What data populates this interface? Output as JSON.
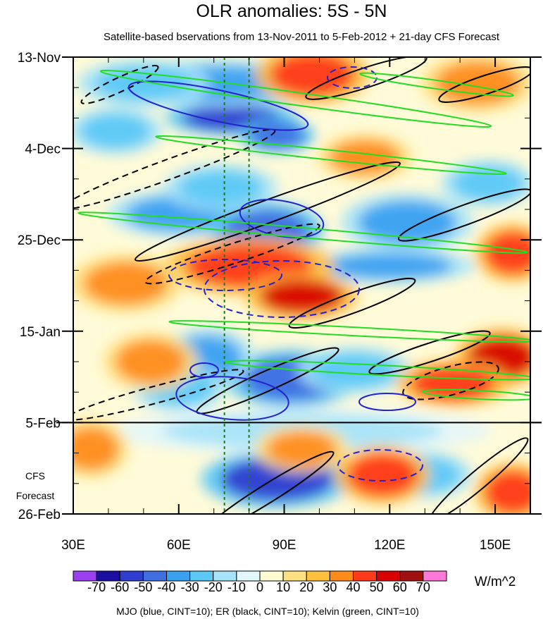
{
  "chart_data": {
    "type": "heatmap",
    "title": "OLR anomalies: 5S - 5N",
    "subtitle": "Satellite-based bservations from 13-Nov-2011 to 5-Feb-2012 + 21-day CFS Forecast",
    "x_ticks": [
      {
        "value": 30,
        "label": "30E"
      },
      {
        "value": 60,
        "label": "60E"
      },
      {
        "value": 90,
        "label": "90E"
      },
      {
        "value": 120,
        "label": "120E"
      },
      {
        "value": 150,
        "label": "150E"
      }
    ],
    "x_range": [
      30,
      160
    ],
    "y_range_days": [
      0,
      105
    ],
    "y_ticks": [
      {
        "day": 0,
        "label": "13-Nov"
      },
      {
        "day": 21,
        "label": "4-Dec"
      },
      {
        "day": 42,
        "label": "25-Dec"
      },
      {
        "day": 63,
        "label": "15-Jan"
      },
      {
        "day": 84,
        "label": "5-Feb"
      },
      {
        "day": 105,
        "label": "26-Feb"
      }
    ],
    "forecast_start_day": 84,
    "forecast_label_line1": "CFS",
    "forecast_label_line2": "Forecast",
    "reference_longitudes": [
      73,
      80
    ],
    "colorbar": {
      "labels": [
        "-70",
        "-60",
        "-50",
        "-40",
        "-30",
        "-20",
        "-10",
        "0",
        "10",
        "20",
        "30",
        "40",
        "50",
        "60",
        "70"
      ],
      "colors": [
        "#9b3ff0",
        "#1a0fa0",
        "#2e3fd0",
        "#3f6fe0",
        "#3aa0f0",
        "#5cc8f5",
        "#a7e3f8",
        "#e3f6fb",
        "#fffbd0",
        "#ffe080",
        "#ffc040",
        "#ff8c1a",
        "#ff3a1a",
        "#d80000",
        "#a01010",
        "#ff7ad8"
      ],
      "units": "W/m^2"
    },
    "footnote": "MJO (blue, CINT=10); ER (black, CINT=10); Kelvin (green, CINT=10)",
    "contour_series": [
      {
        "name": "MJO",
        "color": "#2222cc"
      },
      {
        "name": "ER",
        "color": "#000000"
      },
      {
        "name": "Kelvin",
        "color": "#22dd22"
      }
    ],
    "anomaly_features": [
      {
        "lon": 75,
        "day": 14,
        "value": -60,
        "rlon": 14,
        "rday": 3
      },
      {
        "lon": 70,
        "day": 6,
        "value": -40,
        "rlon": 25,
        "rday": 4
      },
      {
        "lon": 50,
        "day": 6,
        "value": -30,
        "rlon": 14,
        "rday": 4
      },
      {
        "lon": 88,
        "day": 18,
        "value": -50,
        "rlon": 8,
        "rday": 3
      },
      {
        "lon": 42,
        "day": 17,
        "value": -30,
        "rlon": 10,
        "rday": 4
      },
      {
        "lon": 60,
        "day": 36,
        "value": -40,
        "rlon": 15,
        "rday": 4
      },
      {
        "lon": 85,
        "day": 40,
        "value": -50,
        "rlon": 12,
        "rday": 5
      },
      {
        "lon": 72,
        "day": 30,
        "value": -30,
        "rlon": 12,
        "rday": 4
      },
      {
        "lon": 125,
        "day": 38,
        "value": -40,
        "rlon": 14,
        "rday": 5
      },
      {
        "lon": 120,
        "day": 48,
        "value": -40,
        "rlon": 18,
        "rday": 3
      },
      {
        "lon": 148,
        "day": 29,
        "value": -30,
        "rlon": 10,
        "rday": 4
      },
      {
        "lon": 92,
        "day": 74,
        "value": -50,
        "rlon": 14,
        "rday": 5
      },
      {
        "lon": 68,
        "day": 69,
        "value": -40,
        "rlon": 10,
        "rday": 5
      },
      {
        "lon": 60,
        "day": 76,
        "value": -30,
        "rlon": 10,
        "rday": 4
      },
      {
        "lon": 110,
        "day": 72,
        "value": -30,
        "rlon": 12,
        "rday": 4
      },
      {
        "lon": 88,
        "day": 97,
        "value": -60,
        "rlon": 16,
        "rday": 5
      },
      {
        "lon": 95,
        "day": 86,
        "value": -20,
        "rlon": 40,
        "rday": 4
      },
      {
        "lon": 130,
        "day": 96,
        "value": -30,
        "rlon": 10,
        "rday": 4
      },
      {
        "lon": 98,
        "day": 4,
        "value": 40,
        "rlon": 12,
        "rday": 5
      },
      {
        "lon": 145,
        "day": 6,
        "value": 30,
        "rlon": 12,
        "rday": 5
      },
      {
        "lon": 113,
        "day": 23,
        "value": 30,
        "rlon": 10,
        "rday": 4
      },
      {
        "lon": 80,
        "day": 48,
        "value": 40,
        "rlon": 18,
        "rday": 5
      },
      {
        "lon": 95,
        "day": 55,
        "value": 50,
        "rlon": 12,
        "rday": 4
      },
      {
        "lon": 45,
        "day": 52,
        "value": 30,
        "rlon": 12,
        "rday": 5
      },
      {
        "lon": 155,
        "day": 45,
        "value": 40,
        "rlon": 8,
        "rday": 5
      },
      {
        "lon": 152,
        "day": 69,
        "value": 50,
        "rlon": 10,
        "rday": 5
      },
      {
        "lon": 138,
        "day": 75,
        "value": 40,
        "rlon": 12,
        "rday": 4
      },
      {
        "lon": 52,
        "day": 70,
        "value": 30,
        "rlon": 10,
        "rday": 5
      },
      {
        "lon": 95,
        "day": 90,
        "value": 30,
        "rlon": 10,
        "rday": 4
      },
      {
        "lon": 118,
        "day": 96,
        "value": 40,
        "rlon": 10,
        "rday": 5
      },
      {
        "lon": 155,
        "day": 100,
        "value": 40,
        "rlon": 8,
        "rday": 5
      },
      {
        "lon": 35,
        "day": 90,
        "value": 30,
        "rlon": 8,
        "rday": 5
      }
    ]
  }
}
